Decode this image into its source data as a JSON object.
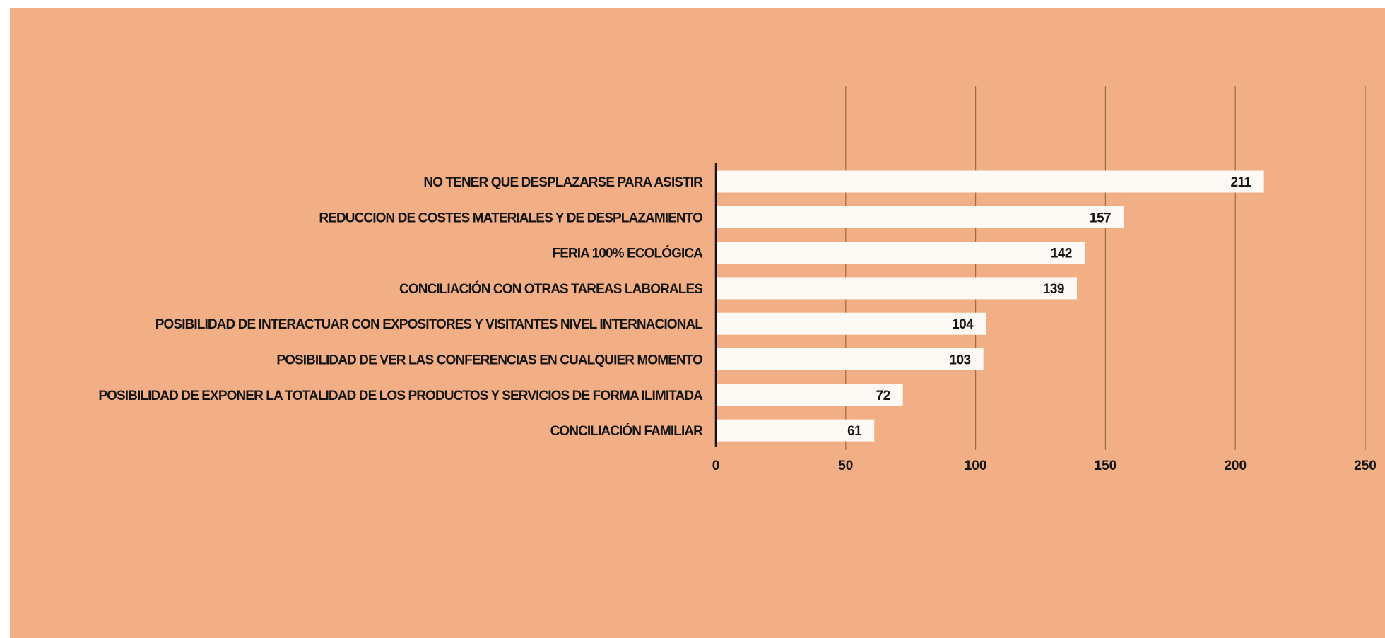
{
  "chart_data": {
    "type": "bar",
    "orientation": "horizontal",
    "title": "",
    "xlabel": "",
    "ylabel": "",
    "categories": [
      "NO TENER QUE DESPLAZARSE PARA ASISTIR",
      "REDUCCION DE COSTES MATERIALES Y DE DESPLAZAMIENTO",
      "FERIA 100% ECOLÓGICA",
      "CONCILIACIÓN CON OTRAS TAREAS LABORALES",
      "POSIBILIDAD DE INTERACTUAR CON EXPOSITORES Y VISITANTES NIVEL INTERNACIONAL",
      "POSIBILIDAD DE VER LAS CONFERENCIAS EN CUALQUIER MOMENTO",
      "POSIBILIDAD DE EXPONER LA TOTALIDAD DE LOS PRODUCTOS Y SERVICIOS DE FORMA ILIMITADA",
      "CONCILIACIÓN FAMILIAR"
    ],
    "values": [
      211,
      157,
      142,
      139,
      104,
      103,
      72,
      61
    ],
    "value_labels": [
      "211",
      "157",
      "142",
      "139",
      "104",
      "103",
      "72",
      "61"
    ],
    "xlim": [
      0,
      250
    ],
    "xticks": [
      "0",
      "50",
      "100",
      "150",
      "200",
      "250"
    ],
    "grid": true,
    "colors": {
      "background": "#f2ae85",
      "bar": "#fdfaf5",
      "text": "#141414",
      "grid": "#9a6a4c",
      "axis": "#141414"
    }
  }
}
